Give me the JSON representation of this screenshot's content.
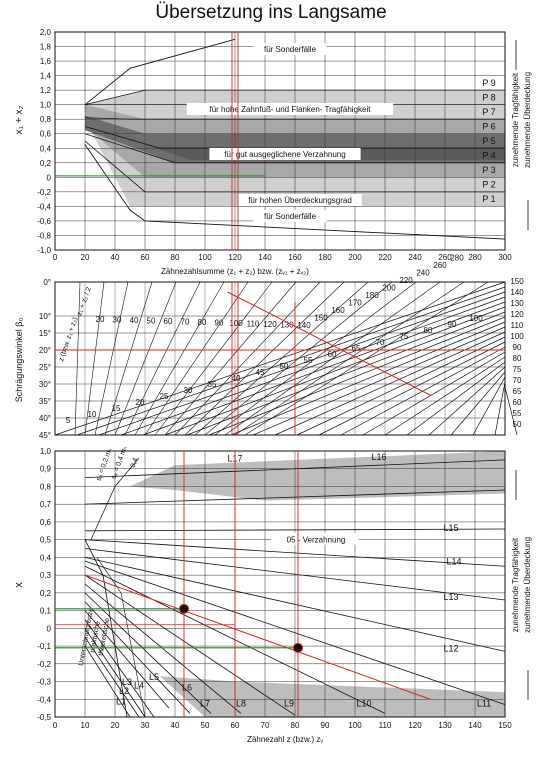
{
  "chart_data": [
    {
      "type": "area",
      "title": "Übersetzung ins Langsame",
      "ylabel": "x₁ + x₂",
      "xlabel": "Zähnezahlsumme (z₁ + z₂) bzw. (zᵥ₁ + zᵥ₂)",
      "xlim": [
        0,
        300
      ],
      "ylim": [
        -1.0,
        2.0
      ],
      "x_ticks": [
        0,
        20,
        40,
        60,
        80,
        100,
        120,
        140,
        160,
        180,
        200,
        220,
        240,
        260,
        280,
        300
      ],
      "y_ticks": [
        2.0,
        1.8,
        1.6,
        1.4,
        1.2,
        1.0,
        0.8,
        0.6,
        0.4,
        0.2,
        0,
        -0.2,
        -0.4,
        -0.6,
        -0.8,
        -1.0
      ],
      "y_tick_labels": [
        "2,0",
        "1,8",
        "1,6",
        "1,4",
        "1,2",
        "1,0",
        "0,8",
        "0,6",
        "0,4",
        "0,2",
        "0",
        "-0,2",
        "-0,4",
        "-0,6",
        "-0,8",
        "-1,0"
      ],
      "zones": [
        "P 9",
        "P 8",
        "P 7",
        "P 6",
        "P 5",
        "P 4",
        "P 3",
        "P 2",
        "P 1"
      ],
      "zone_bounds": [
        [
          1.2,
          1.4
        ],
        [
          1.0,
          1.2
        ],
        [
          0.8,
          1.0
        ],
        [
          0.6,
          0.8
        ],
        [
          0.4,
          0.6
        ],
        [
          0.2,
          0.4
        ],
        [
          0.0,
          0.2
        ],
        [
          -0.2,
          0.0
        ],
        [
          -0.4,
          -0.2
        ]
      ],
      "annotations": [
        "für Sonderfälle",
        "für hohe Zahnfuß- und Flanken- Tragfähigkeit",
        "für gut ausgeglichene Verzahnung",
        "für hohen Überdeckungsgrad",
        "für Sonderfälle"
      ],
      "right_labels": [
        "zunehmende Tragfähigkeit",
        "zunehmende Überdeckung"
      ],
      "reading_line_x": 120,
      "reading_line_y": 0.02
    },
    {
      "type": "line",
      "ylabel": "Schrägungswinkel β₀",
      "y_ticks": [
        "0°",
        "10°",
        "15°",
        "20°",
        "25°",
        "30°",
        "35°",
        "40°",
        "45°"
      ],
      "y_values": [
        0,
        10,
        15,
        20,
        25,
        30,
        35,
        40,
        45
      ],
      "right_scale": [
        150,
        140,
        130,
        120,
        110,
        100,
        90,
        80,
        75,
        70,
        65,
        60,
        55,
        50
      ],
      "inner_labels": [
        20,
        30,
        40,
        50,
        60,
        70,
        80,
        90,
        100,
        110,
        120,
        130,
        140,
        150,
        160,
        170,
        180,
        200,
        220,
        240,
        260,
        280
      ],
      "lower_labels": [
        5,
        10,
        15,
        20,
        25,
        30,
        35,
        40,
        45,
        50,
        55,
        60,
        65,
        70,
        75,
        80,
        90,
        100
      ],
      "curve_label": "z (bzw. z₁ + z₂)",
      "left_label": "z₁ + z₂ / 2"
    },
    {
      "type": "area",
      "ylabel": "x",
      "xlabel": "Zähnezahl z (bzw.) zᵥ",
      "xlim": [
        0,
        150
      ],
      "ylim": [
        -0.5,
        1.0
      ],
      "x_ticks": [
        0,
        10,
        20,
        30,
        40,
        50,
        60,
        70,
        80,
        90,
        100,
        110,
        120,
        130,
        140,
        150
      ],
      "y_ticks": [
        1.0,
        0.9,
        0.8,
        0.7,
        0.6,
        0.5,
        0.4,
        0.3,
        0.2,
        0.1,
        0,
        -0.1,
        -0.2,
        -0.3,
        -0.4,
        -0.5
      ],
      "y_tick_labels": [
        "1,0",
        "0,9",
        "0,8",
        "0,7",
        "0,6",
        "0,5",
        "0,4",
        "0,3",
        "0,2",
        "0,1",
        "0",
        "-0,1",
        "-0,2",
        "-0,3",
        "-0,4",
        "-0,5"
      ],
      "lines": [
        "L1",
        "L2",
        "L3",
        "L4",
        "L5",
        "L6",
        "L7",
        "L8",
        "L9",
        "L10",
        "L11",
        "L12",
        "L13",
        "L14",
        "L15",
        "L16",
        "L17"
      ],
      "annotation": "05 - Verzahnung",
      "limit_labels": [
        "sₐ = 0,2 mₙ",
        "sₐ = 0,4 mₙ",
        "0,4",
        "theoretische",
        "praktische",
        "Unterschnittgrenze"
      ],
      "points": [
        {
          "x": 43,
          "y": 0.11
        },
        {
          "x": 81,
          "y": -0.11
        }
      ],
      "right_labels": [
        "zunehmende Tragfähigkeit",
        "zunehmende Überdeckung"
      ]
    }
  ]
}
